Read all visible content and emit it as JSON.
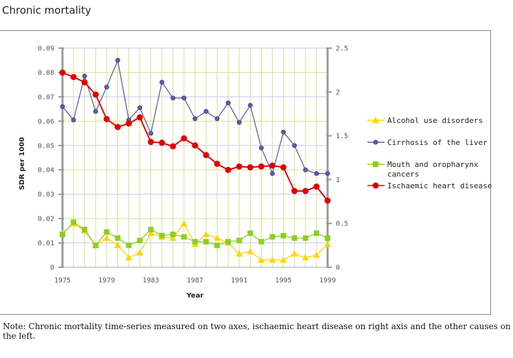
{
  "page": {
    "title": "Chronic mortality",
    "note": "Note: Chronic mortality time-series measured on two axes, ischaemic heart disease on right axis and the other causes on the left."
  },
  "chart_data": {
    "type": "line",
    "xlabel": "Year",
    "ylabel": "SDR per 1000",
    "x_ticks": [
      "1975",
      "1979",
      "1983",
      "1987",
      "1991",
      "1995",
      "1999"
    ],
    "xlim": [
      1975,
      1999
    ],
    "ylim_left": [
      0,
      0.09
    ],
    "y_ticks_left": [
      "0",
      "0.01",
      "0.02",
      "0.03",
      "0.04",
      "0.05",
      "0.06",
      "0.07",
      "0.08",
      "0.09"
    ],
    "ylim_right": [
      0,
      2.5
    ],
    "y_ticks_right": [
      "0",
      "0.5",
      "1",
      "1.5",
      "2",
      "2.5"
    ],
    "grid": true,
    "legend_position": "right",
    "x": [
      1975,
      1976,
      1977,
      1978,
      1979,
      1980,
      1981,
      1982,
      1983,
      1984,
      1985,
      1986,
      1987,
      1988,
      1989,
      1990,
      1991,
      1992,
      1993,
      1994,
      1995,
      1996,
      1997,
      1998,
      1999
    ],
    "series": [
      {
        "name": "Alcohol use disorders",
        "axis": "left",
        "color": "#ffd400",
        "marker": "triangle",
        "values": [
          0.014,
          0.018,
          0.015,
          0.009,
          0.012,
          0.009,
          0.004,
          0.006,
          0.014,
          0.0125,
          0.012,
          0.018,
          0.0095,
          0.0135,
          0.012,
          0.01,
          0.0055,
          0.0065,
          0.003,
          0.003,
          0.003,
          0.0055,
          0.004,
          0.005,
          0.0095
        ]
      },
      {
        "name": "Cirrhosis of the liver",
        "axis": "left",
        "color": "#5b5ea6",
        "marker": "circle",
        "values": [
          0.066,
          0.0605,
          0.0785,
          0.064,
          0.074,
          0.085,
          0.0605,
          0.0655,
          0.055,
          0.076,
          0.0695,
          0.0695,
          0.061,
          0.064,
          0.061,
          0.0675,
          0.0595,
          0.0665,
          0.049,
          0.0385,
          0.0555,
          0.05,
          0.04,
          0.0385,
          0.0385
        ]
      },
      {
        "name": "Mouth and oropharynx cancers",
        "axis": "left",
        "color": "#8ccf1f",
        "marker": "square",
        "values": [
          0.0135,
          0.0185,
          0.0155,
          0.009,
          0.0145,
          0.012,
          0.009,
          0.011,
          0.0155,
          0.013,
          0.0135,
          0.0125,
          0.0105,
          0.0105,
          0.009,
          0.0105,
          0.011,
          0.014,
          0.0105,
          0.0125,
          0.013,
          0.012,
          0.012,
          0.014,
          0.012
        ]
      },
      {
        "name": "Ischaemic heart disease",
        "axis": "right",
        "color": "#e00000",
        "marker": "circle",
        "values": [
          2.22,
          2.17,
          2.11,
          1.97,
          1.69,
          1.6,
          1.64,
          1.71,
          1.43,
          1.42,
          1.38,
          1.47,
          1.39,
          1.28,
          1.18,
          1.11,
          1.15,
          1.14,
          1.15,
          1.16,
          1.14,
          0.87,
          0.87,
          0.92,
          0.76
        ]
      }
    ]
  }
}
